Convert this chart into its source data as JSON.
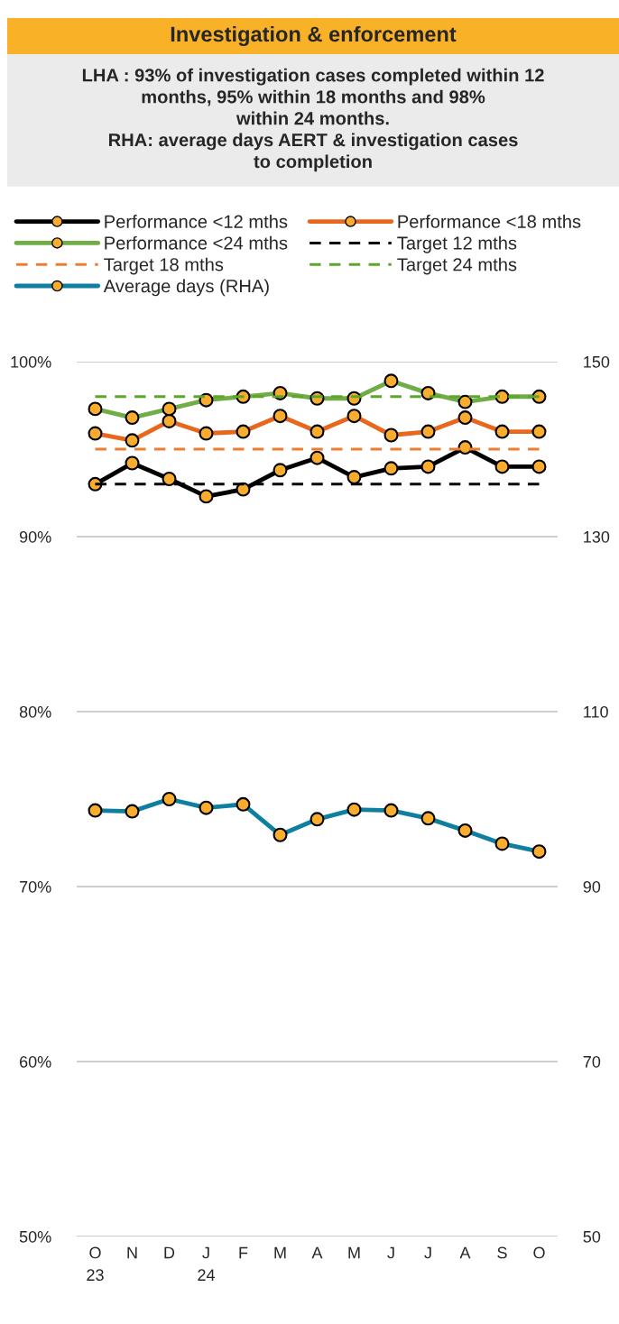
{
  "chart_data": {
    "type": "line",
    "title": "Investigation & enforcement",
    "subtitle": "LHA : 93% of investigation cases completed within 12\nmonths, 95% within 18 months and 98%\nwithin 24 months.\nRHA: average days AERT & investigation cases\nto completion",
    "categories": [
      "O\n23",
      "N",
      "D",
      "J\n24",
      "F",
      "M",
      "A",
      "M",
      "J",
      "J",
      "A",
      "S",
      "O"
    ],
    "series": [
      {
        "name": "Performance <12 mths",
        "color": "#000000",
        "marker": "circle",
        "line_style": "solid",
        "values": [
          93.0,
          94.2,
          93.3,
          92.3,
          92.7,
          93.8,
          94.5,
          93.4,
          93.9,
          94.0,
          95.1,
          94.0,
          94.0
        ]
      },
      {
        "name": "Performance <18 mths",
        "color": "#e8671c",
        "marker": "circle",
        "line_style": "solid",
        "values": [
          95.9,
          95.5,
          96.6,
          95.9,
          96.0,
          96.9,
          96.0,
          96.9,
          95.8,
          96.0,
          96.8,
          96.0,
          96.0
        ]
      },
      {
        "name": "Performance <24 mths",
        "color": "#70ad47",
        "marker": "circle",
        "line_style": "solid",
        "values": [
          97.3,
          96.8,
          97.3,
          97.8,
          98.0,
          98.2,
          97.9,
          97.9,
          98.9,
          98.2,
          97.7,
          98.0,
          98.0
        ]
      },
      {
        "name": "Target 12 mths",
        "color": "#000000",
        "marker": "none",
        "line_style": "dashed",
        "values": [
          93,
          93,
          93,
          93,
          93,
          93,
          93,
          93,
          93,
          93,
          93,
          93,
          93
        ]
      },
      {
        "name": "Target 18 mths",
        "color": "#ed7d31",
        "marker": "none",
        "line_style": "dashed",
        "values": [
          95,
          95,
          95,
          95,
          95,
          95,
          95,
          95,
          95,
          95,
          95,
          95,
          95
        ]
      },
      {
        "name": "Target 24 mths",
        "color": "#5ea52b",
        "marker": "none",
        "line_style": "dashed",
        "values": [
          98,
          98,
          98,
          98,
          98,
          98,
          98,
          98,
          98,
          98,
          98,
          98,
          98
        ]
      },
      {
        "name": "Average days (RHA)",
        "color": "#0f7fa0",
        "marker": "circle",
        "line_style": "solid",
        "axis": "y2",
        "values": [
          98.7,
          98.6,
          100.0,
          99.0,
          99.4,
          95.9,
          97.7,
          98.8,
          98.7,
          97.8,
          96.4,
          94.9,
          94.0
        ]
      }
    ],
    "ylim": [
      50,
      100
    ],
    "yticks": [
      {
        "value": 50,
        "label": "50%"
      },
      {
        "value": 60,
        "label": "60%"
      },
      {
        "value": 70,
        "label": "70%"
      },
      {
        "value": 80,
        "label": "80%"
      },
      {
        "value": 90,
        "label": "90%"
      },
      {
        "value": 100,
        "label": "100%"
      }
    ],
    "y2lim": [
      50,
      150
    ],
    "y2ticks": [
      50,
      70,
      90,
      110,
      130,
      150
    ],
    "grid": "y",
    "legend": "top"
  }
}
